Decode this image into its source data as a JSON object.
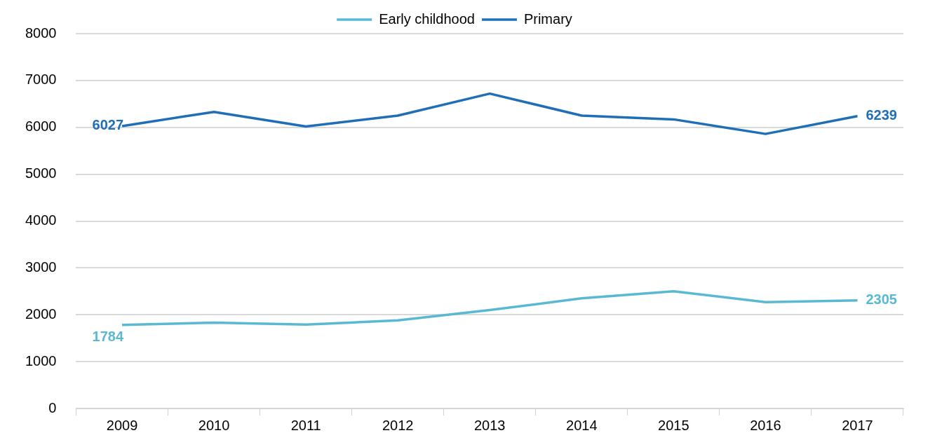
{
  "chart_data": {
    "type": "line",
    "categories": [
      "2009",
      "2010",
      "2011",
      "2012",
      "2013",
      "2014",
      "2015",
      "2016",
      "2017"
    ],
    "series": [
      {
        "name": "Early childhood",
        "color": "#5ab9d2",
        "values": [
          1784,
          1830,
          1790,
          1880,
          2100,
          2350,
          2500,
          2270,
          2305
        ],
        "value_labels": [
          "1784",
          null,
          null,
          null,
          null,
          null,
          null,
          null,
          "2305"
        ]
      },
      {
        "name": "Primary",
        "color": "#1f6eb6",
        "values": [
          6027,
          6330,
          6020,
          6250,
          6720,
          6250,
          6170,
          5860,
          6239
        ],
        "value_labels": [
          "6027",
          null,
          null,
          null,
          null,
          null,
          null,
          null,
          "6239"
        ]
      }
    ],
    "ylim": [
      0,
      8000
    ],
    "yticks": [
      0,
      1000,
      2000,
      3000,
      4000,
      5000,
      6000,
      7000,
      8000
    ],
    "grid": "y",
    "legend": "top",
    "marker": "none",
    "line_style": "solid"
  }
}
